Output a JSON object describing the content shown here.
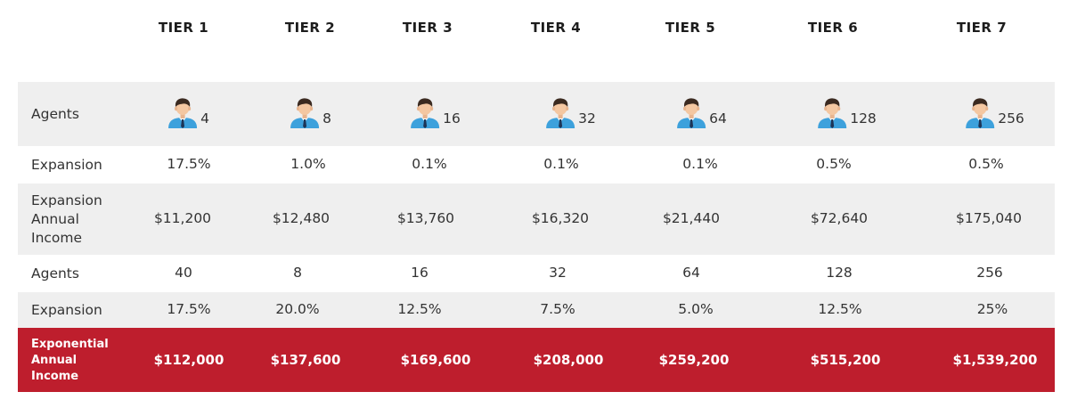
{
  "tiers": [
    "TIER 1",
    "TIER 2",
    "TIER 3",
    "TIER 4",
    "TIER 5",
    "TIER 6",
    "TIER 7"
  ],
  "rows": {
    "agents_icons": {
      "label": "Agents",
      "icon": "agent-person-icon",
      "values": [
        "4",
        "8",
        "16",
        "32",
        "64",
        "128",
        "256"
      ]
    },
    "expansion_1": {
      "label": "Expansion",
      "values": [
        "17.5%",
        "1.0%",
        "0.1%",
        "0.1%",
        "0.1%",
        "0.5%",
        "0.5%"
      ]
    },
    "expansion_income": {
      "label_lines": [
        "Expansion",
        "Annual",
        "Income"
      ],
      "values": [
        "$11,200",
        "$12,480",
        "$13,760",
        "$16,320",
        "$21,440",
        "$72,640",
        "$175,040"
      ]
    },
    "agents_2": {
      "label": "Agents",
      "values": [
        "40",
        "8",
        "16",
        "32",
        "64",
        "128",
        "256"
      ]
    },
    "expansion_2": {
      "label": "Expansion",
      "values": [
        "17.5%",
        "20.0%",
        "12.5%",
        "7.5%",
        "5.0%",
        "12.5%",
        "25%"
      ]
    },
    "exponential_income": {
      "label_lines": [
        "Exponential",
        "Annual",
        "Income"
      ],
      "values": [
        "$112,000",
        "$137,600",
        "$169,600",
        "$208,000",
        "$259,200",
        "$515,200",
        "$1,539,200"
      ]
    }
  },
  "colors": {
    "accent_red": "#be1e2d",
    "row_gray": "#efefef",
    "shirt_blue": "#3da1dc",
    "tie": "#1d3557"
  }
}
